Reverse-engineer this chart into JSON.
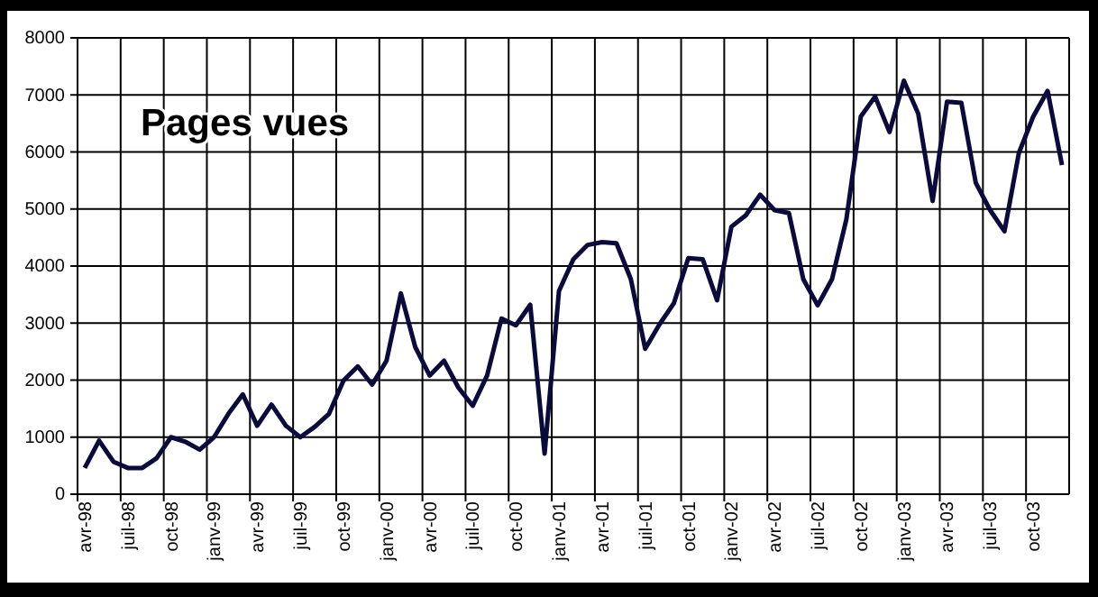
{
  "chart_data": {
    "type": "line",
    "title": "Pages vues",
    "categories": [
      "avr-98",
      null,
      null,
      "juil-98",
      null,
      null,
      "oct-98",
      null,
      null,
      "janv-99",
      null,
      null,
      "avr-99",
      null,
      null,
      "juil-99",
      null,
      null,
      "oct-99",
      null,
      null,
      "janv-00",
      null,
      null,
      "avr-00",
      null,
      null,
      "juil-00",
      null,
      null,
      "oct-00",
      null,
      null,
      "janv-01",
      null,
      null,
      "avr-01",
      null,
      null,
      "juil-01",
      null,
      null,
      "oct-01",
      null,
      null,
      "janv-02",
      null,
      null,
      "avr-02",
      null,
      null,
      "juil-02",
      null,
      null,
      "oct-02",
      null,
      null,
      "janv-03",
      null,
      null,
      "avr-03",
      null,
      null,
      "juil-03",
      null,
      null,
      "oct-03",
      null,
      null
    ],
    "series": [
      {
        "color": "#0a0a3c",
        "values": [
          460,
          940,
          570,
          460,
          460,
          630,
          1000,
          920,
          780,
          1000,
          1410,
          1750,
          1200,
          1570,
          1200,
          1000,
          1180,
          1410,
          1990,
          2240,
          1920,
          2340,
          3520,
          2580,
          2080,
          2340,
          1870,
          1550,
          2080,
          3080,
          2960,
          3320,
          710,
          3560,
          4120,
          4370,
          4420,
          4400,
          3770,
          2550,
          2980,
          3350,
          4140,
          4120,
          3400,
          4690,
          4890,
          5250,
          4980,
          4930,
          3770,
          3310,
          3770,
          4820,
          6620,
          6970,
          6350,
          7250,
          6670,
          5140,
          6880,
          6860,
          5460,
          4980,
          4610,
          5980,
          6620,
          7070,
          5770
        ]
      }
    ],
    "ylim": [
      0,
      8000
    ],
    "yticks": [
      0,
      1000,
      2000,
      3000,
      4000,
      5000,
      6000,
      7000,
      8000
    ],
    "grid": true
  }
}
